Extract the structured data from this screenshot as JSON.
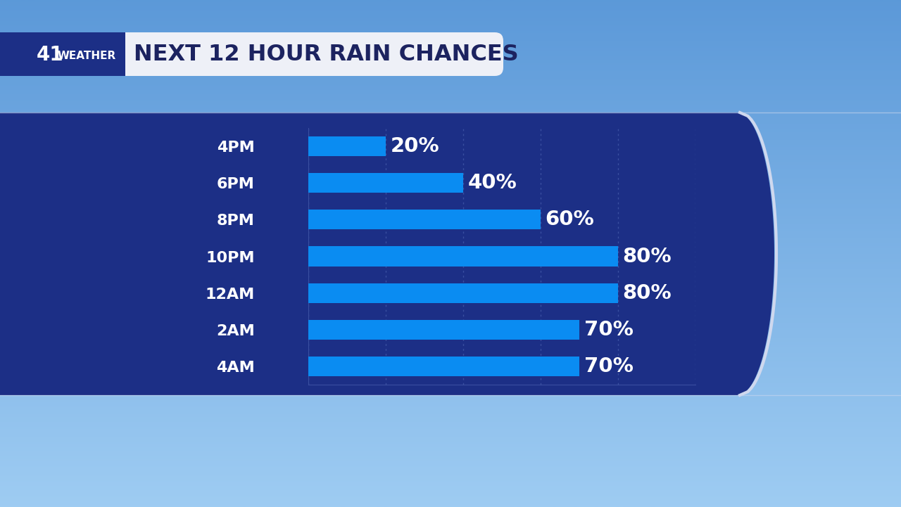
{
  "branding": {
    "number": "41",
    "name": "WEATHER"
  },
  "chart_data": {
    "type": "bar",
    "title": "NEXT 12 HOUR RAIN CHANCES",
    "orientation": "horizontal",
    "categories": [
      "4PM",
      "6PM",
      "8PM",
      "10PM",
      "12AM",
      "2AM",
      "4AM"
    ],
    "values": [
      20,
      40,
      60,
      80,
      80,
      70,
      70
    ],
    "value_labels": [
      "20%",
      "40%",
      "60%",
      "80%",
      "80%",
      "70%",
      "70%"
    ],
    "data_labels": true,
    "color": "#0a8cf2",
    "xlim": [
      0,
      100
    ],
    "xticks": [
      0,
      20,
      40,
      60,
      80,
      100
    ],
    "grid": true,
    "tick_labels": "y"
  }
}
